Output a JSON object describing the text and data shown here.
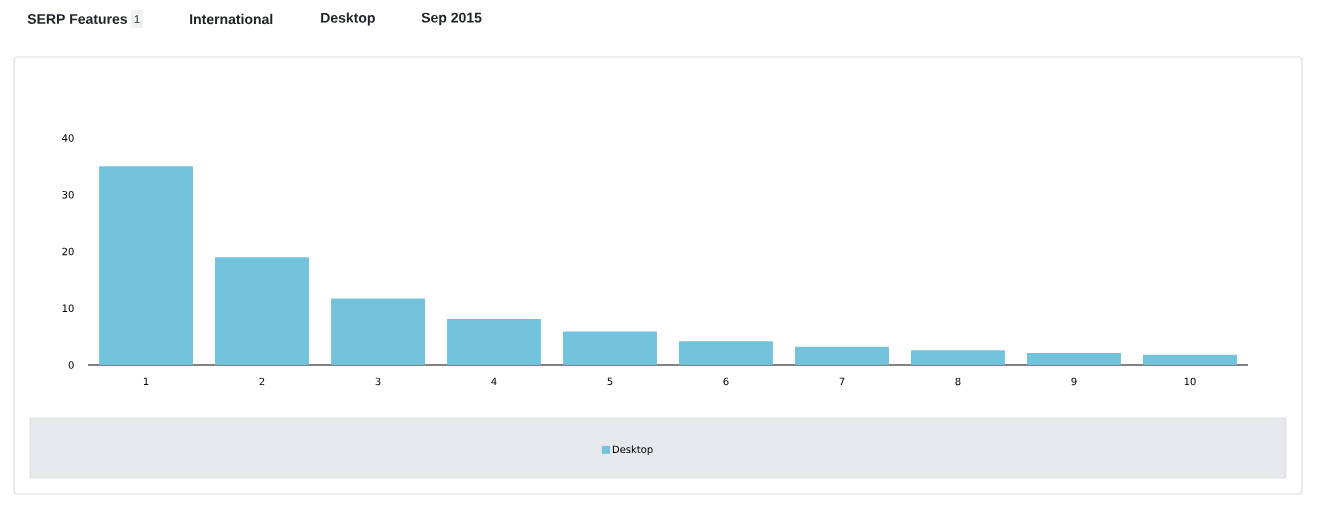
{
  "chart_data": {
    "type": "bar",
    "annotations": [
      "SERP Features",
      "1",
      "International",
      "Desktop",
      "Sep 2015"
    ],
    "categories": [
      "1",
      "2",
      "3",
      "4",
      "5",
      "6",
      "7",
      "8",
      "9",
      "10"
    ],
    "series": [
      {
        "name": "Desktop",
        "color": "#73c2db",
        "values": [
          35,
          19,
          11.7,
          8.1,
          5.9,
          4.2,
          3.2,
          2.6,
          2.1,
          1.8
        ]
      }
    ],
    "ylim": [
      0,
      40
    ],
    "yticks": [
      0,
      10,
      20,
      30,
      40
    ],
    "legend": "bottom"
  }
}
